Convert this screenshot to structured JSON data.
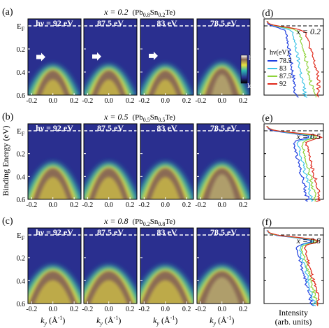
{
  "colors": {
    "bg": "#2a2f8f",
    "panel_border": "#000000",
    "dash": "#ffffff",
    "spec_78_5": "#1f3fe0",
    "spec_83": "#3ec4e6",
    "spec_87_5": "#8ed33a",
    "spec_92": "#e0281a"
  },
  "labels": {
    "y_axis": "Binding Energy (eV)",
    "x_axis_prefix": "k",
    "x_axis_sub": "y",
    "x_axis_unit": "(Å",
    "x_axis_sup": "-1",
    "x_axis_close": ")",
    "ef_main": "E",
    "ef_sub": "F",
    "colorbar_high": "high",
    "colorbar_low": "low",
    "legend_title": "hν(eV)",
    "intensity_line1": "Intensity",
    "intensity_line2": "(arb. units)"
  },
  "rows": [
    {
      "label": "(a)",
      "x_prefix": "x = 0.2",
      "comp": "(Pb",
      "n1": "0.8",
      "mid": "Sn",
      "n2": "0.2",
      "end": "Te)",
      "spectra_label": "(d)",
      "spectra_x": "x = 0.2"
    },
    {
      "label": "(b)",
      "x_prefix": "x = 0.5",
      "comp": "(Pb",
      "n1": "0.5",
      "mid": "Sn",
      "n2": "0.5",
      "end": "Te)",
      "spectra_label": "(e)",
      "spectra_x": "x = 0.5"
    },
    {
      "label": "(c)",
      "x_prefix": "x = 0.8",
      "comp": "(Pb",
      "n1": "0.2",
      "mid": "Sn",
      "n2": "0.8",
      "end": "Te)",
      "spectra_label": "(f)",
      "spectra_x": "x = 0.8"
    }
  ],
  "photon_energies": [
    "hν = 92 eV",
    "87.5 eV",
    "83 eV",
    "78.5 eV"
  ],
  "y_ticks": [
    "0.2",
    "0.4",
    "0.6"
  ],
  "x_ticks": [
    "-0.2",
    "0.0",
    "0.2"
  ],
  "legend": [
    "78.5",
    "83",
    "87.5",
    "92"
  ]
}
